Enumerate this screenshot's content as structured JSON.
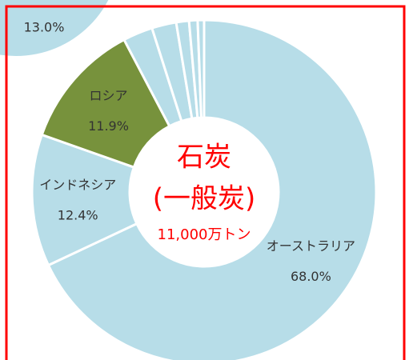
{
  "chart_data": [
    {
      "type": "donut",
      "title": "石炭",
      "subtitle": "(一般炭)",
      "annotation": "11,000万トン",
      "categories": [
        "オーストラリア",
        "インドネシア",
        "ロシア",
        null,
        null,
        null,
        null,
        null
      ],
      "values": [
        68.0,
        12.4,
        11.9,
        2.8,
        2.3,
        1.2,
        0.8,
        0.6
      ],
      "value_labels": [
        "68.0%",
        "12.4%",
        "11.9%",
        null,
        null,
        null,
        null,
        null
      ],
      "colors": [
        "#b7dde8",
        "#b7dde8",
        "#77923c",
        "#b7dde8",
        "#b7dde8",
        "#b7dde8",
        "#b7dde8",
        "#b7dde8"
      ]
    },
    {
      "type": "pie",
      "values": [
        13.0
      ],
      "value_labels": [
        "13.0%"
      ],
      "colors": [
        "#b7dde8"
      ]
    }
  ]
}
